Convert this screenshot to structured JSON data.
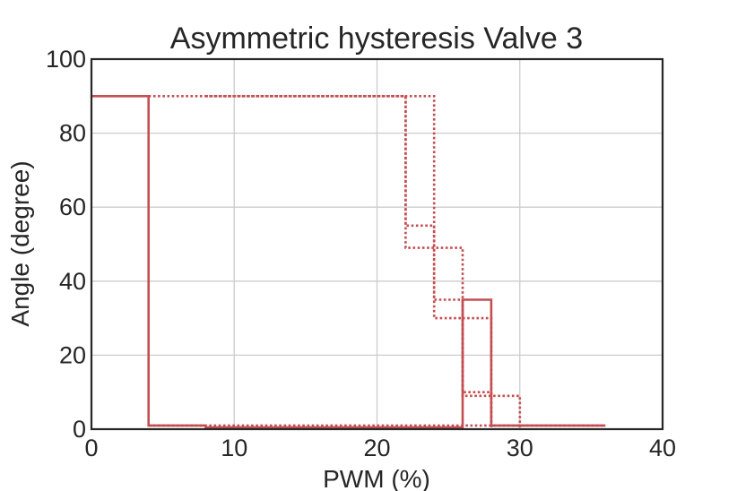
{
  "chart_data": {
    "type": "line",
    "title": "Asymmetric hysteresis Valve 3",
    "xlabel": "PWM (%)",
    "ylabel": "Angle (degree)",
    "xlim": [
      0,
      40
    ],
    "ylim": [
      0,
      100
    ],
    "xticks": [
      0,
      10,
      20,
      30,
      40
    ],
    "yticks": [
      0,
      20,
      40,
      60,
      80,
      100
    ],
    "grid": true,
    "legend": "none",
    "color": "#c44e52",
    "series": [
      {
        "style": "solid",
        "points": [
          [
            0,
            90
          ],
          [
            4,
            90
          ],
          [
            4,
            1
          ],
          [
            8,
            1
          ],
          [
            8,
            0.5
          ],
          [
            26,
            0.5
          ],
          [
            26,
            35
          ],
          [
            28,
            35
          ],
          [
            28,
            1
          ],
          [
            36,
            1
          ]
        ]
      },
      {
        "style": "dotted",
        "points": [
          [
            4,
            90
          ],
          [
            24,
            90
          ],
          [
            24,
            35
          ],
          [
            26,
            35
          ],
          [
            26,
            30
          ],
          [
            28,
            30
          ],
          [
            28,
            0.5
          ]
        ]
      },
      {
        "style": "dotted",
        "points": [
          [
            8,
            90
          ],
          [
            22,
            90
          ],
          [
            22,
            49
          ],
          [
            26,
            49
          ],
          [
            26,
            9
          ],
          [
            30,
            9
          ],
          [
            30,
            0.5
          ]
        ]
      },
      {
        "style": "dotted",
        "points": [
          [
            22,
            90
          ],
          [
            22,
            55
          ],
          [
            24,
            55
          ],
          [
            24,
            30
          ],
          [
            26,
            30
          ],
          [
            26,
            10
          ],
          [
            28,
            10
          ],
          [
            28,
            0.5
          ]
        ]
      },
      {
        "style": "dotted",
        "points": [
          [
            4,
            1
          ],
          [
            36,
            1
          ]
        ]
      }
    ]
  }
}
